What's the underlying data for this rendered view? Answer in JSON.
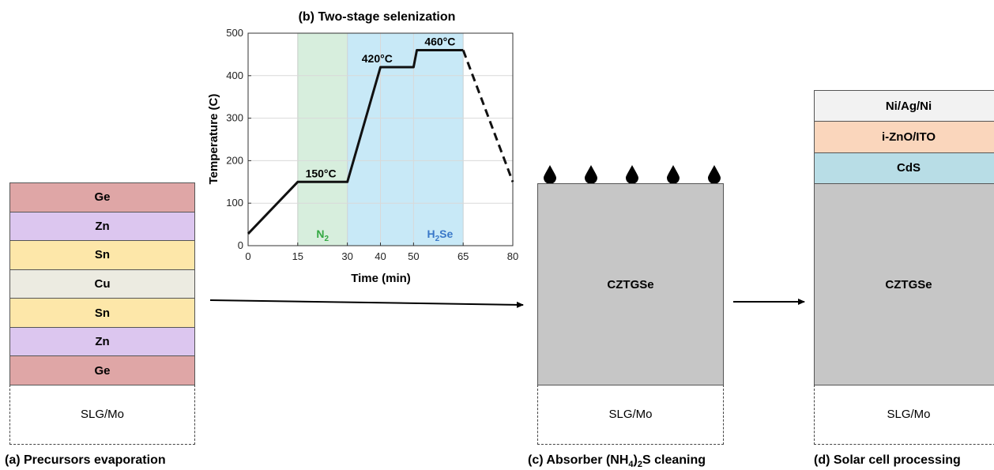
{
  "panel_a": {
    "caption": "(a) Precursors evaporation",
    "layers": [
      {
        "label": "Ge",
        "color": "#dfa6a6"
      },
      {
        "label": "Zn",
        "color": "#dcc6ef"
      },
      {
        "label": "Sn",
        "color": "#fde7a9"
      },
      {
        "label": "Cu",
        "color": "#ecebe1"
      },
      {
        "label": "Sn",
        "color": "#fde7a9"
      },
      {
        "label": "Zn",
        "color": "#dcc6ef"
      },
      {
        "label": "Ge",
        "color": "#dfa6a6"
      }
    ],
    "substrate": "SLG/Mo"
  },
  "panel_b": {
    "chart_data": {
      "type": "line",
      "title": "(b) Two-stage selenization",
      "xlabel": "Time (min)",
      "ylabel": "Temperature (C)",
      "xlim": [
        0,
        80
      ],
      "ylim": [
        0,
        500
      ],
      "xticks": [
        0,
        15,
        30,
        40,
        50,
        65,
        80
      ],
      "yticks": [
        0,
        100,
        200,
        300,
        400,
        500
      ],
      "grid": true,
      "series": [
        {
          "style": "solid",
          "x": [
            0,
            15,
            30,
            40,
            50,
            51,
            65
          ],
          "y": [
            28,
            150,
            150,
            420,
            420,
            460,
            460
          ]
        },
        {
          "style": "dashed",
          "x": [
            65,
            80
          ],
          "y": [
            460,
            150
          ]
        }
      ],
      "regions": [
        {
          "x": [
            15,
            30
          ],
          "label_main": "N",
          "label_sub": "2",
          "label_color": "#33a842",
          "fill": "#d7eedd"
        },
        {
          "x": [
            30,
            65
          ],
          "label_main": "H",
          "label_sub": "2",
          "label_rest": "Se",
          "label_color": "#3a78c8",
          "fill": "#c8e9f7"
        }
      ],
      "annotations": [
        {
          "text": "150°C",
          "x": 22,
          "y": 150
        },
        {
          "text": "420°C",
          "x": 39,
          "y": 420
        },
        {
          "text": "460°C",
          "x": 58,
          "y": 460
        }
      ]
    }
  },
  "panel_c": {
    "caption_pre": "(c) Absorber (NH",
    "caption_sub1": "4",
    "caption_mid": ")",
    "caption_sub2": "2",
    "caption_post": "S cleaning",
    "absorber": "CZTGSe",
    "substrate": "SLG/Mo"
  },
  "panel_d": {
    "caption": "(d) Solar cell processing",
    "layers": [
      {
        "label": "Ni/Ag/Ni",
        "color": "#f2f2f2"
      },
      {
        "label": "i-ZnO/ITO",
        "color": "#fad6bc"
      },
      {
        "label": "CdS",
        "color": "#b8dde6"
      }
    ],
    "absorber": "CZTGSe",
    "substrate": "SLG/Mo"
  }
}
